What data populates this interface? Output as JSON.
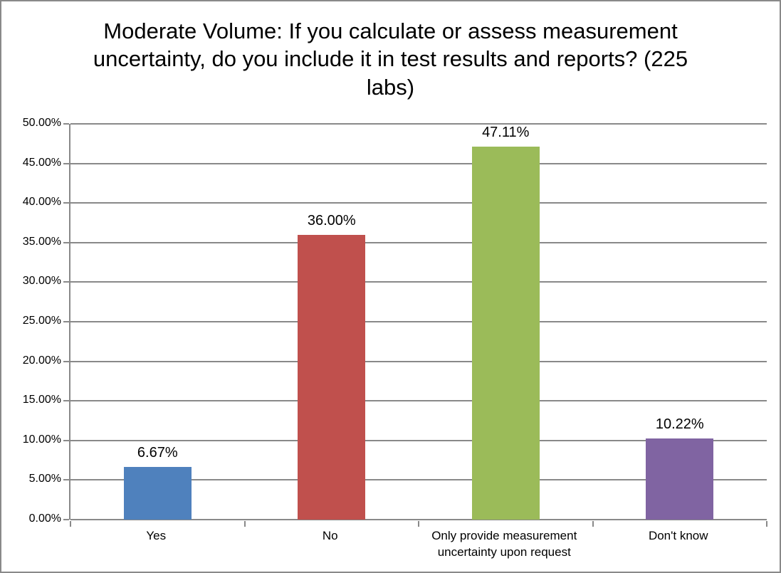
{
  "chart_data": {
    "type": "bar",
    "title": "Moderate Volume: If you calculate or assess measurement uncertainty, do you include it in test results and reports? (225 labs)",
    "categories": [
      "Yes",
      "No",
      "Only provide measurement uncertainty upon request",
      "Don't know"
    ],
    "values": [
      6.67,
      36.0,
      47.11,
      10.22
    ],
    "data_labels": [
      "6.67%",
      "36.00%",
      "47.11%",
      "10.22%"
    ],
    "bar_colors": [
      "#4f81bd",
      "#c0504d",
      "#9bbb59",
      "#8064a2"
    ],
    "xlabel": "",
    "ylabel": "",
    "ylim": [
      0,
      50
    ],
    "ytick_step": 5,
    "ytick_labels": [
      "0.00%",
      "5.00%",
      "10.00%",
      "15.00%",
      "20.00%",
      "25.00%",
      "30.00%",
      "35.00%",
      "40.00%",
      "45.00%",
      "50.00%"
    ],
    "grid": "horizontal",
    "gridline_color": "#898989",
    "legend_position": "none",
    "background_color": "#ffffff"
  }
}
